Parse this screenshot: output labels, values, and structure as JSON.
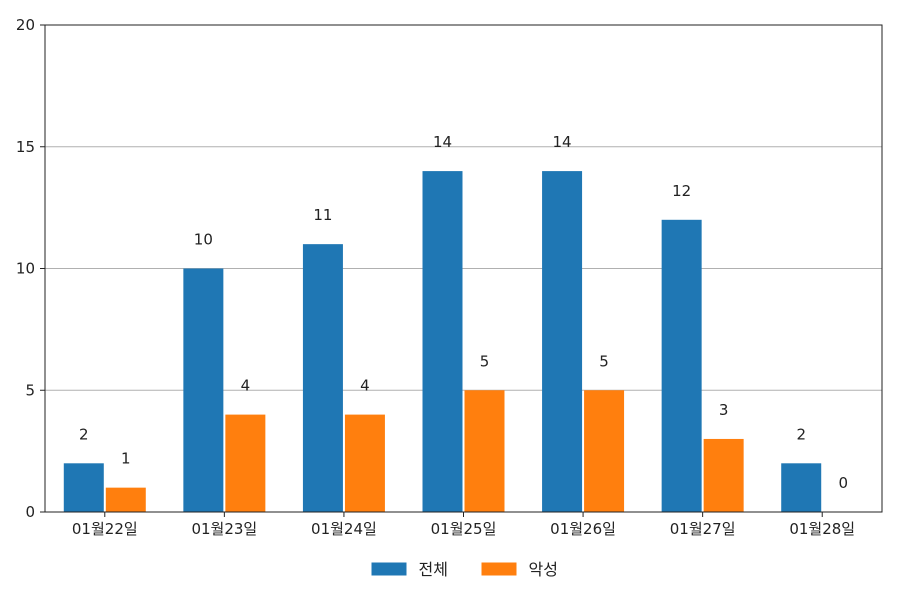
{
  "chart_data": {
    "type": "bar",
    "title": "",
    "xlabel": "",
    "ylabel": "",
    "categories": [
      "01월22일",
      "01월23일",
      "01월24일",
      "01월25일",
      "01월26일",
      "01월27일",
      "01월28일"
    ],
    "series": [
      {
        "name": "전체",
        "color": "#1f77b4",
        "values": [
          2,
          10,
          11,
          14,
          14,
          12,
          2
        ]
      },
      {
        "name": "악성",
        "color": "#ff7f0e",
        "values": [
          1,
          4,
          4,
          5,
          5,
          3,
          0
        ]
      }
    ],
    "ylim": [
      0,
      20
    ],
    "yticks": [
      0,
      5,
      10,
      15,
      20
    ],
    "grid": "horizontal",
    "legend_position": "bottom-center",
    "data_labels": true
  }
}
